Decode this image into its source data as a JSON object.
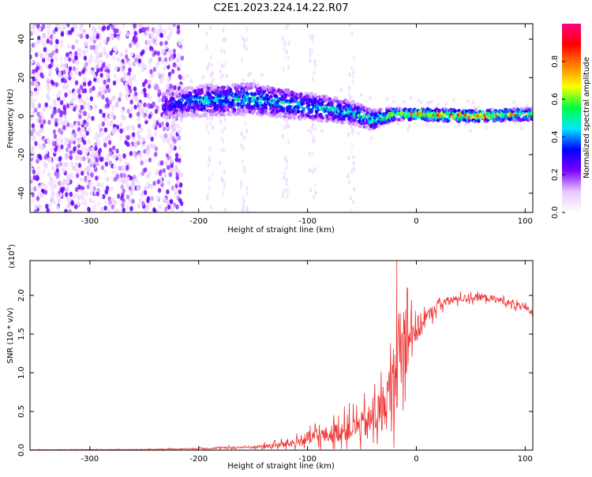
{
  "title": "C2E1.2023.224.14.22.R07",
  "chart_data": [
    {
      "type": "heatmap",
      "title": "C2E1.2023.224.14.22.R07",
      "xlabel": "Height of straight line (km)",
      "ylabel": "Frequency (Hz)",
      "xlim": [
        -355,
        107
      ],
      "ylim": [
        -50,
        48
      ],
      "xticks": [
        -300,
        -200,
        -100,
        0,
        100
      ],
      "yticks": [
        -40,
        -20,
        0,
        20,
        40
      ],
      "colorbar": {
        "label": "Normalized spectral amplitude",
        "range": [
          0.0,
          1.0
        ],
        "ticks": [
          "0.0",
          "0.2",
          "0.4",
          "0.6",
          "0.8"
        ],
        "tick_values": [
          0.0,
          0.2,
          0.4,
          0.6,
          0.8
        ],
        "colors": [
          "#ffffff",
          "#e6c8ff",
          "#7a00ff",
          "#0000ff",
          "#00e8ff",
          "#00ff40",
          "#ffff00",
          "#ff8000",
          "#ff0000",
          "#ff0080"
        ]
      },
      "ridge": {
        "x": [
          -230,
          -200,
          -150,
          -100,
          -60,
          -40,
          -20,
          0,
          50,
          107
        ],
        "y_center": [
          6,
          8,
          9,
          5,
          2,
          -2,
          1,
          1,
          0,
          1
        ],
        "half_width": [
          7,
          8,
          8,
          7,
          6,
          5,
          3,
          3,
          3,
          3
        ],
        "peak_amplitude": [
          0.35,
          0.45,
          0.5,
          0.5,
          0.5,
          0.55,
          0.7,
          0.85,
          0.9,
          0.7
        ]
      },
      "noise_extent_x": [
        -355,
        -215
      ]
    },
    {
      "type": "line",
      "xlabel": "Height of straight line (km)",
      "ylabel": "SNR (10 * v/v)",
      "multiplier": "(x10",
      "multiplier_exp": "4",
      "multiplier_close": ")",
      "xlim": [
        -355,
        107
      ],
      "ylim": [
        0,
        2.45
      ],
      "xticks": [
        -300,
        -200,
        -100,
        0,
        100
      ],
      "yticks": [
        "0.0",
        "0.5",
        "1.0",
        "1.5",
        "2.0"
      ],
      "ytick_values": [
        0.0,
        0.5,
        1.0,
        1.5,
        2.0
      ],
      "color": "#ef3333",
      "envelope": {
        "x": [
          -355,
          -250,
          -200,
          -150,
          -130,
          -110,
          -100,
          -80,
          -60,
          -50,
          -40,
          -30,
          -25,
          -20,
          -15,
          -10,
          -5,
          0,
          10,
          20,
          30,
          40,
          60,
          80,
          100,
          107
        ],
        "base": [
          0.005,
          0.008,
          0.02,
          0.04,
          0.06,
          0.1,
          0.15,
          0.2,
          0.28,
          0.32,
          0.4,
          0.55,
          0.7,
          0.95,
          1.2,
          1.4,
          1.7,
          1.55,
          1.72,
          1.88,
          1.93,
          1.96,
          1.98,
          1.93,
          1.83,
          1.78
        ],
        "spread": [
          0.005,
          0.008,
          0.02,
          0.04,
          0.08,
          0.12,
          0.2,
          0.25,
          0.35,
          0.4,
          0.5,
          0.7,
          0.9,
          1.1,
          1.2,
          1.1,
          0.9,
          0.45,
          0.2,
          0.15,
          0.12,
          0.1,
          0.1,
          0.1,
          0.1,
          0.1
        ]
      },
      "peak_value": 2.45,
      "peak_x": -18
    }
  ]
}
